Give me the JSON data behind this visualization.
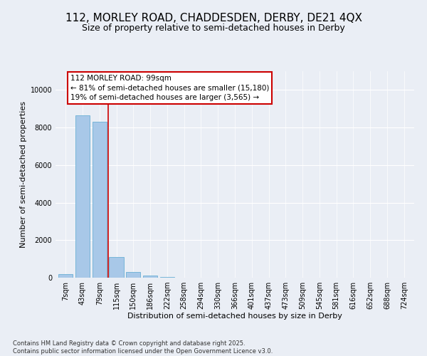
{
  "title_line1": "112, MORLEY ROAD, CHADDESDEN, DERBY, DE21 4QX",
  "title_line2": "Size of property relative to semi-detached houses in Derby",
  "xlabel": "Distribution of semi-detached houses by size in Derby",
  "ylabel": "Number of semi-detached properties",
  "categories": [
    "7sqm",
    "43sqm",
    "79sqm",
    "115sqm",
    "150sqm",
    "186sqm",
    "222sqm",
    "258sqm",
    "294sqm",
    "330sqm",
    "366sqm",
    "401sqm",
    "437sqm",
    "473sqm",
    "509sqm",
    "545sqm",
    "581sqm",
    "616sqm",
    "652sqm",
    "688sqm",
    "724sqm"
  ],
  "values": [
    200,
    8650,
    8300,
    1100,
    320,
    100,
    50,
    0,
    0,
    0,
    0,
    0,
    0,
    0,
    0,
    0,
    0,
    0,
    0,
    0,
    0
  ],
  "bar_color": "#a8c8e8",
  "bar_edge_color": "#6aafd4",
  "highlight_line_color": "#cc0000",
  "annotation_box_text": "112 MORLEY ROAD: 99sqm\n← 81% of semi-detached houses are smaller (15,180)\n19% of semi-detached houses are larger (3,565) →",
  "annotation_box_color": "#cc0000",
  "annotation_box_bg": "#ffffff",
  "ylim": [
    0,
    11000
  ],
  "yticks": [
    0,
    2000,
    4000,
    6000,
    8000,
    10000
  ],
  "background_color": "#eaeef5",
  "grid_color": "#ffffff",
  "footer_text": "Contains HM Land Registry data © Crown copyright and database right 2025.\nContains public sector information licensed under the Open Government Licence v3.0.",
  "title_fontsize": 11,
  "subtitle_fontsize": 9,
  "axis_label_fontsize": 8,
  "tick_fontsize": 7,
  "annotation_fontsize": 7.5
}
